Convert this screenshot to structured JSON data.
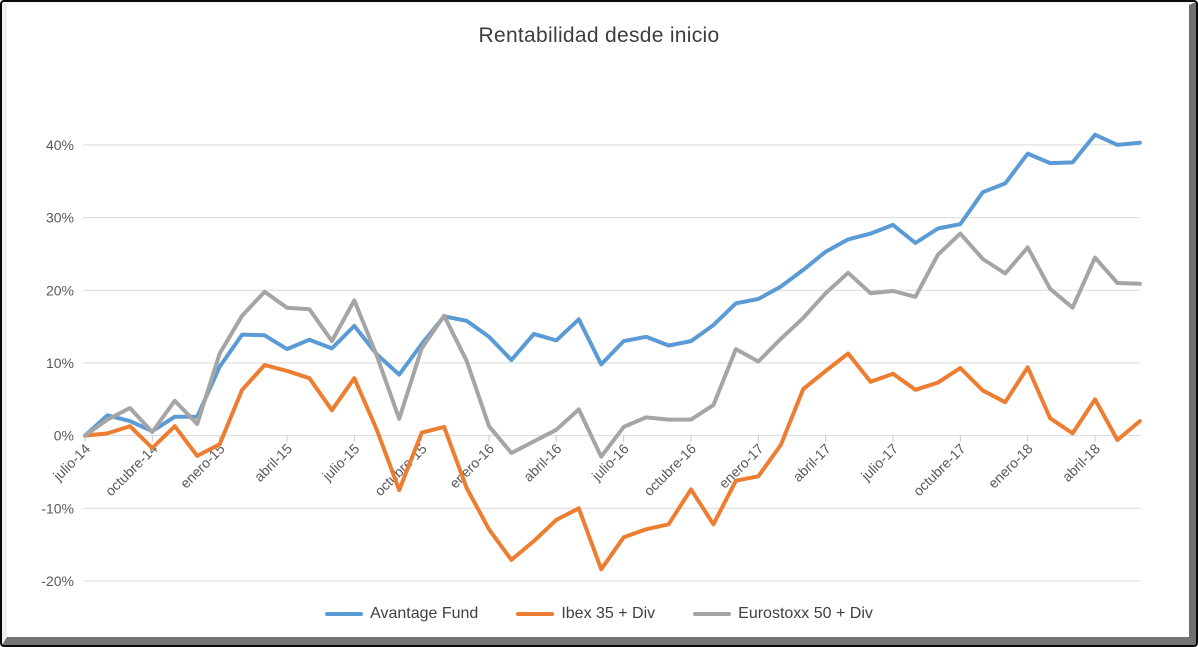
{
  "window": {
    "background_color": "#ffffff",
    "frame_border_color": "#0a0a0a"
  },
  "chart_data": {
    "type": "line",
    "title": "Rentabilidad desde inicio",
    "x_unit": "monthly",
    "months": [
      "julio-14",
      "agosto-14",
      "septiembre-14",
      "octubre-14",
      "noviembre-14",
      "diciembre-14",
      "enero-15",
      "febrero-15",
      "marzo-15",
      "abril-15",
      "mayo-15",
      "junio-15",
      "julio-15",
      "agosto-15",
      "septiembre-15",
      "octubre-15",
      "noviembre-15",
      "diciembre-15",
      "enero-16",
      "febrero-16",
      "marzo-16",
      "abril-16",
      "mayo-16",
      "junio-16",
      "julio-16",
      "agosto-16",
      "septiembre-16",
      "octubre-16",
      "noviembre-16",
      "diciembre-16",
      "enero-17",
      "febrero-17",
      "marzo-17",
      "abril-17",
      "mayo-17",
      "junio-17",
      "julio-17",
      "agosto-17",
      "septiembre-17",
      "octubre-17",
      "noviembre-17",
      "diciembre-17",
      "enero-18",
      "febrero-18",
      "marzo-18",
      "abril-18",
      "mayo-18",
      "junio-18"
    ],
    "x_tick_labels": [
      "julio-14",
      "octubre-14",
      "enero-15",
      "abril-15",
      "julio-15",
      "octubre-15",
      "enero-16",
      "abril-16",
      "julio-16",
      "octubre-16",
      "enero-17",
      "abril-17",
      "julio-17",
      "octubre-17",
      "enero-18",
      "abril-18"
    ],
    "x_tick_every_n_months": 3,
    "ytick_labels": [
      "40%",
      "30%",
      "20%",
      "10%",
      "0%",
      "-10%",
      "-20%"
    ],
    "ytick_values": [
      40,
      30,
      20,
      10,
      0,
      -10,
      -20
    ],
    "ylim": [
      -20,
      40
    ],
    "grid": true,
    "legend_position": "bottom",
    "series": [
      {
        "name": "Avantage Fund",
        "color": "#5B9BD5",
        "values": [
          0.0,
          2.8,
          2.0,
          0.6,
          2.6,
          2.6,
          9.5,
          13.9,
          13.8,
          11.9,
          13.2,
          12.0,
          15.1,
          11.2,
          8.4,
          12.6,
          16.4,
          15.8,
          13.6,
          10.4,
          14.0,
          13.1,
          16.0,
          9.8,
          13.0,
          13.6,
          12.4,
          13.0,
          15.2,
          18.2,
          18.8,
          20.5,
          22.8,
          25.3,
          27.0,
          27.8,
          29.0,
          26.5,
          28.5,
          29.1,
          33.5,
          34.7,
          38.8,
          37.5,
          37.6,
          41.4,
          40.0,
          40.3
        ]
      },
      {
        "name": "Ibex 35 + Div",
        "color": "#ED7D31",
        "values": [
          0.0,
          0.3,
          1.3,
          -1.7,
          1.3,
          -2.8,
          -1.2,
          6.3,
          9.7,
          8.9,
          7.9,
          3.5,
          7.9,
          0.8,
          -7.5,
          0.4,
          1.2,
          -7.2,
          -12.9,
          -17.1,
          -14.5,
          -11.6,
          -10.0,
          -18.4,
          -14.0,
          -12.9,
          -12.2,
          -7.4,
          -12.2,
          -6.2,
          -5.6,
          -1.3,
          6.4,
          8.9,
          11.3,
          7.4,
          8.5,
          6.3,
          7.3,
          9.3,
          6.2,
          4.6,
          9.4,
          2.4,
          0.3,
          5.0,
          -0.6,
          2.0
        ]
      },
      {
        "name": "Eurostoxx 50 + Div",
        "color": "#A5A5A5",
        "values": [
          0.0,
          2.2,
          3.8,
          0.5,
          4.8,
          1.6,
          11.3,
          16.5,
          19.8,
          17.6,
          17.4,
          13.0,
          18.6,
          11.0,
          2.3,
          12.0,
          16.5,
          10.3,
          1.3,
          -2.4,
          -0.8,
          0.8,
          3.6,
          -2.9,
          1.2,
          2.5,
          2.2,
          2.2,
          4.2,
          11.9,
          10.2,
          13.3,
          16.2,
          19.6,
          22.4,
          19.6,
          19.9,
          19.1,
          24.9,
          27.8,
          24.3,
          22.3,
          25.9,
          20.2,
          17.6,
          24.5,
          21.0,
          20.9
        ]
      }
    ],
    "style": {
      "gridline_color": "#D9D9D9",
      "axis_line_color": "#C6C6C6",
      "axis_label_color": "#595959",
      "title_color": "#3d3d3d",
      "legend_text_color": "#404040",
      "line_width": 4
    }
  }
}
